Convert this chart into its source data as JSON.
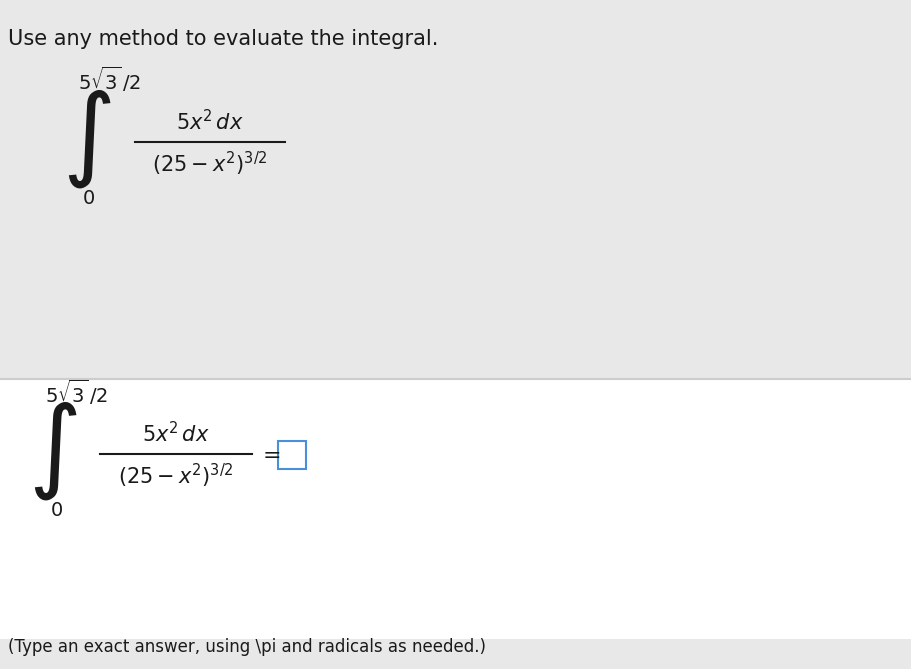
{
  "bg_color": "#f0f0f0",
  "top_section_bg": "#f0f0f0",
  "bottom_section_bg": "#ffffff",
  "divider_color": "#cccccc",
  "text_color": "#1a1a1a",
  "header_text": "Use any method to evaluate the integral.",
  "header_fontsize": 15,
  "math_fontsize": 14,
  "small_fontsize": 11,
  "upper_limit": "5\\sqrt{3}/2",
  "lower_limit": "0",
  "integrand_num": "5x^{2}\\,dx",
  "integrand_den": "\\left(25-x^{2}\\right)^{3/2}",
  "equals_box": "= \\square",
  "footer_text": "(Type an exact answer, using \\pi and radicals as needed.)",
  "footer_fontsize": 12
}
